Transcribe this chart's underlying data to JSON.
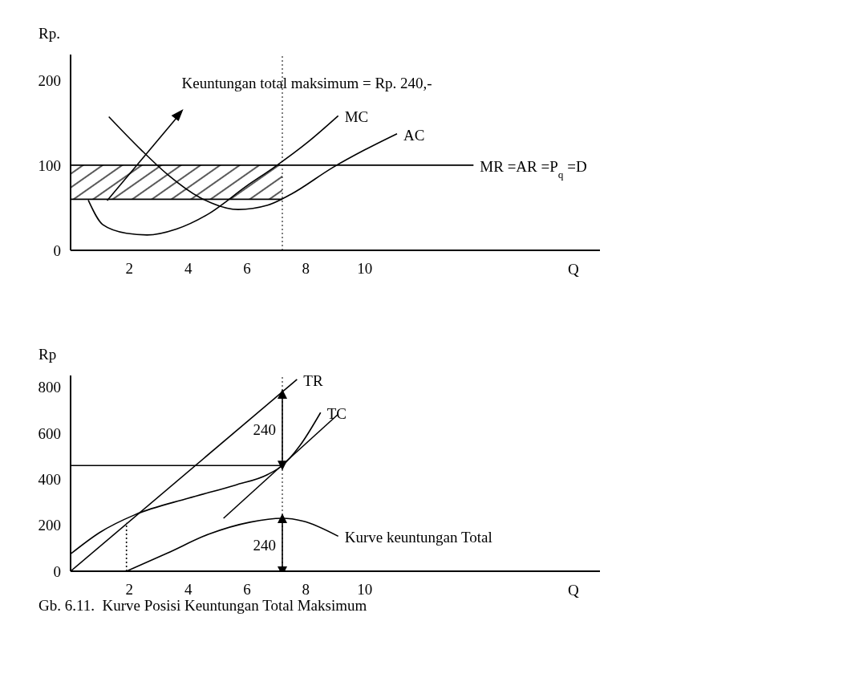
{
  "chart_data": [
    {
      "type": "line",
      "ylabel": "Rp.",
      "xlabel": "Q",
      "xlim": [
        0,
        18
      ],
      "ylim": [
        0,
        230
      ],
      "xticks": [
        2,
        4,
        6,
        8,
        10
      ],
      "yticks": [
        0,
        100,
        200
      ],
      "grid": false,
      "annotations": [
        "Keuntungan total maksimum = Rp. 240,-"
      ],
      "ref_lines": [
        {
          "axis": "x",
          "value": 7.2,
          "line_style": "dotted"
        }
      ],
      "series": [
        {
          "name": "MR =AR =P$_{q}$ =D",
          "color": "#000000",
          "x": [
            0,
            13.7
          ],
          "values": [
            100,
            100
          ]
        },
        {
          "color": "#000000",
          "x": [
            0,
            7.2
          ],
          "values": [
            60,
            60
          ],
          "lower": [
            60,
            60
          ],
          "upper": [
            100,
            100
          ]
        },
        {
          "name": "MC",
          "color": "#000000",
          "x": [
            0.6,
            1.1,
            1.9,
            2.6,
            3.6,
            4.7,
            6.0,
            6.9,
            8.1,
            9.1
          ],
          "values": [
            59,
            30,
            20,
            18,
            25,
            43,
            76,
            97,
            128,
            158
          ]
        },
        {
          "name": "AC",
          "color": "#000000",
          "x": [
            1.3,
            2.4,
            3.3,
            4.4,
            5.7,
            6.7,
            7.5,
            8.9,
            10,
            11.1
          ],
          "values": [
            157,
            118,
            89,
            62,
            48,
            53,
            66,
            97,
            118,
            137
          ]
        }
      ]
    },
    {
      "type": "line",
      "title": "Gb. 6.11.  Kurve Posisi Keuntungan Total Maksimum",
      "ylabel": "Rp",
      "xlabel": "Q",
      "xlim": [
        0,
        18
      ],
      "ylim": [
        0,
        850
      ],
      "xticks": [
        2,
        4,
        6,
        8,
        10
      ],
      "yticks": [
        0,
        200,
        400,
        600,
        800
      ],
      "grid": false,
      "annotations": [
        {
          "text": "240",
          "x": 7.2,
          "y": 615
        },
        {
          "text": "240",
          "x": 7.2,
          "y": 115
        }
      ],
      "ref_lines": [
        {
          "axis": "x",
          "value": 7.2,
          "line_style": "dotted"
        }
      ],
      "series": [
        {
          "name": "TR",
          "color": "#000000",
          "x": [
            0,
            7.7
          ],
          "values": [
            0,
            833
          ]
        },
        {
          "name": "TC",
          "color": "#000000",
          "x": [
            0,
            1.0,
            2.2,
            4.0,
            5.6,
            6.7,
            7.2,
            7.8,
            8.5
          ],
          "values": [
            75,
            169,
            246,
            317,
            374,
            420,
            459,
            546,
            689
          ]
        },
        {
          "color": "#000000",
          "x": [
            5.2,
            9.1
          ],
          "values": [
            230,
            682
          ]
        },
        {
          "color": "#000000",
          "x": [
            0,
            7.2
          ],
          "values": [
            459,
            459
          ]
        },
        {
          "name": "Kurve keuntungan Total",
          "color": "#000000",
          "x": [
            1.9,
            3.3,
            4.7,
            6.1,
            7.2,
            7.9,
            9.1
          ],
          "values": [
            0,
            79,
            161,
            213,
            230,
            218,
            152
          ]
        },
        {
          "color": "#000000",
          "x": [
            1.9,
            1.9
          ],
          "values": [
            0,
            210
          ],
          "line_style": "dotted"
        },
        {
          "color": "#000000",
          "x": [
            7.2,
            7.2
          ],
          "values": [
            459,
            770
          ],
          "marker": "triangle"
        },
        {
          "color": "#000000",
          "x": [
            7.2,
            7.2
          ],
          "values": [
            0,
            230
          ],
          "marker": "triangle"
        }
      ]
    }
  ]
}
